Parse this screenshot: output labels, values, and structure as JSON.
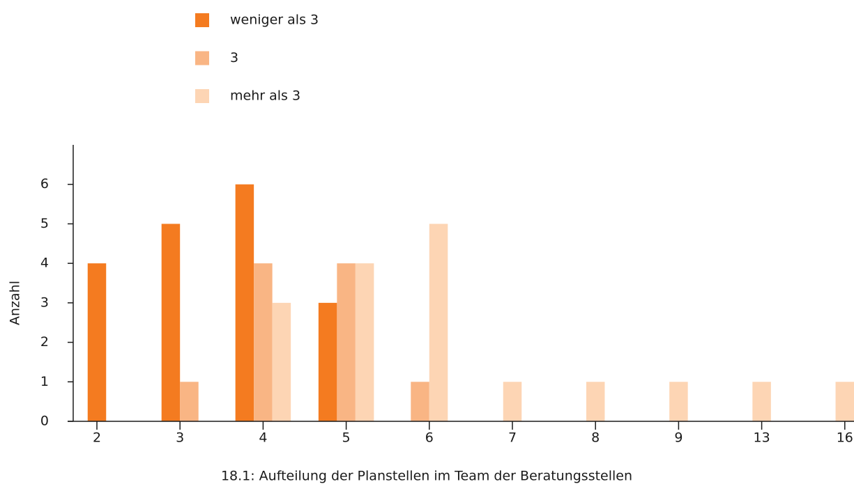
{
  "chart_data": {
    "type": "bar",
    "title": "18.1: Aufteilung der Planstellen im Team der Beratungsstellen",
    "y_label": "Anzahl",
    "categories": [
      "2",
      "3",
      "4",
      "5",
      "6",
      "7",
      "8",
      "9",
      "13",
      "16"
    ],
    "series": [
      {
        "name": "weniger als 3",
        "color": "#f47b20",
        "values": [
          4,
          5,
          6,
          3,
          null,
          null,
          null,
          null,
          null,
          null
        ]
      },
      {
        "name": "3",
        "color": "#f9b584",
        "values": [
          null,
          1,
          4,
          4,
          1,
          null,
          null,
          null,
          null,
          null
        ]
      },
      {
        "name": "mehr als 3",
        "color": "#fdd5b4",
        "values": [
          null,
          null,
          3,
          4,
          5,
          1,
          1,
          1,
          1,
          1
        ]
      }
    ],
    "ylim": [
      0,
      7
    ],
    "yticks": [
      0,
      1,
      2,
      3,
      4,
      5,
      6
    ],
    "grid": false
  }
}
